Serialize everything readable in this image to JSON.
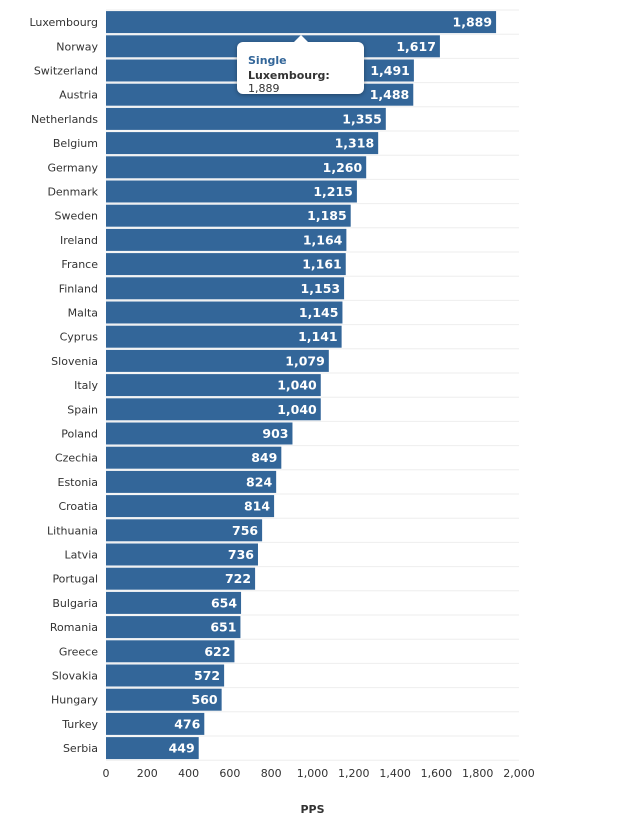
{
  "chart_data": {
    "type": "bar",
    "orientation": "horizontal",
    "categories": [
      "Luxembourg",
      "Norway",
      "Switzerland",
      "Austria",
      "Netherlands",
      "Belgium",
      "Germany",
      "Denmark",
      "Sweden",
      "Ireland",
      "France",
      "Finland",
      "Malta",
      "Cyprus",
      "Slovenia",
      "Italy",
      "Spain",
      "Poland",
      "Czechia",
      "Estonia",
      "Croatia",
      "Lithuania",
      "Latvia",
      "Portugal",
      "Bulgaria",
      "Romania",
      "Greece",
      "Slovakia",
      "Hungary",
      "Turkey",
      "Serbia"
    ],
    "series": [
      {
        "name": "Single",
        "values": [
          1889,
          1617,
          1491,
          1488,
          1355,
          1318,
          1260,
          1215,
          1185,
          1164,
          1161,
          1153,
          1145,
          1141,
          1079,
          1040,
          1040,
          903,
          849,
          824,
          814,
          756,
          736,
          722,
          654,
          651,
          622,
          572,
          560,
          476,
          449
        ]
      }
    ],
    "value_labels": [
      "1,889",
      "1,617",
      "1,491",
      "1,488",
      "1,355",
      "1,318",
      "1,260",
      "1,215",
      "1,185",
      "1,164",
      "1,161",
      "1,153",
      "1,145",
      "1,141",
      "1,079",
      "1,040",
      "1,040",
      "903",
      "849",
      "824",
      "814",
      "756",
      "736",
      "722",
      "654",
      "651",
      "622",
      "572",
      "560",
      "476",
      "449"
    ],
    "xlabel": "PPS",
    "xlim": [
      0,
      2000
    ],
    "xticks": [
      0,
      200,
      400,
      600,
      800,
      1000,
      1200,
      1400,
      1600,
      1800,
      2000
    ],
    "xtick_labels": [
      "0",
      "200",
      "400",
      "600",
      "800",
      "1,000",
      "1,200",
      "1,400",
      "1,600",
      "1,800",
      "2,000"
    ],
    "grid": true,
    "bar_color": "#336699"
  },
  "tooltip": {
    "series": "Single",
    "category": "Luxembourg:",
    "value": "1,889"
  }
}
